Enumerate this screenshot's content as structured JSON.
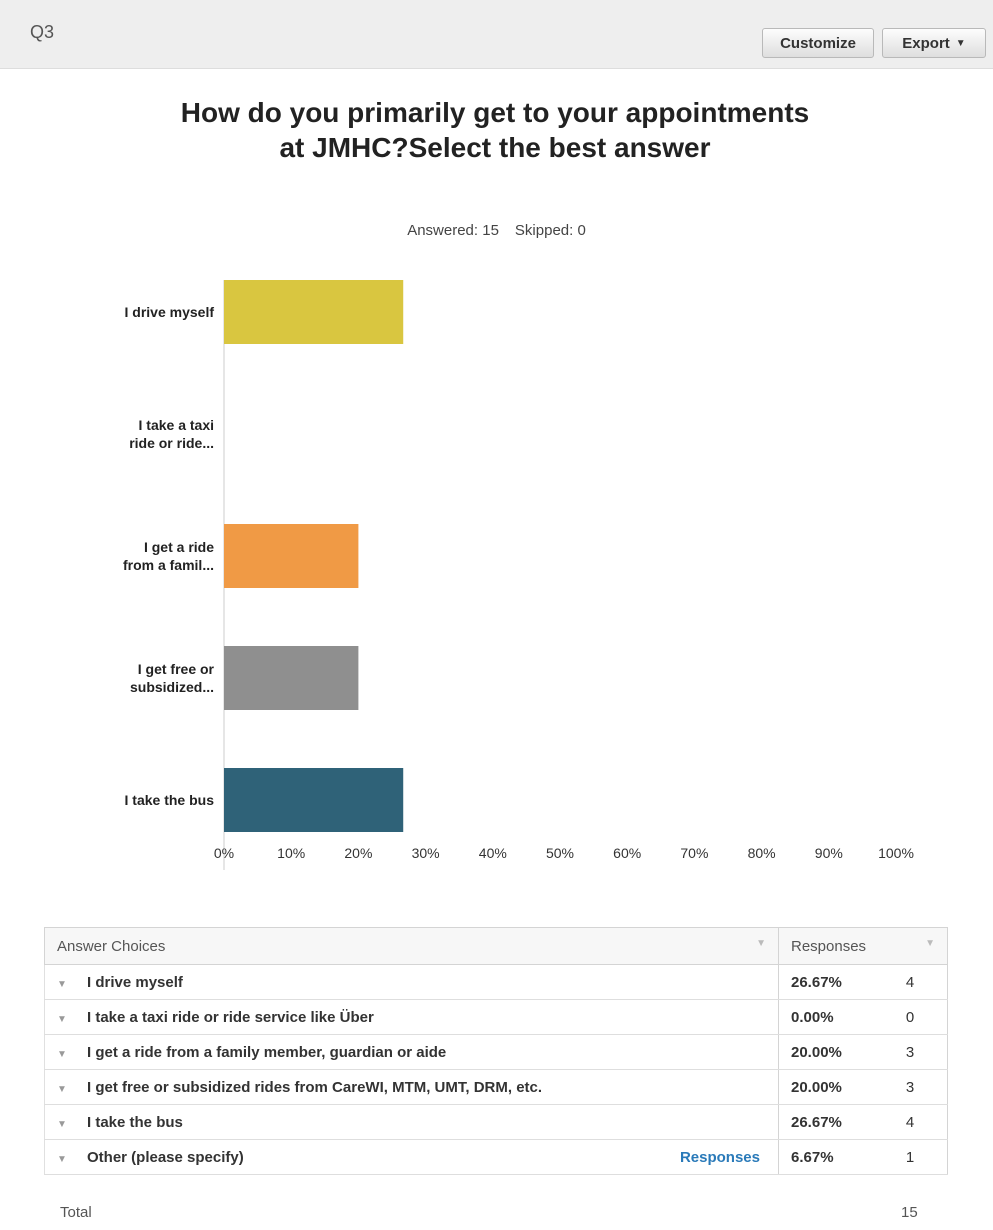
{
  "header": {
    "question_id": "Q3",
    "customize_label": "Customize",
    "export_label": "Export"
  },
  "title": "How do you primarily get to your appointments at JMHC?Select the best answer",
  "stats": {
    "answered": "Answered: 15",
    "skipped": "Skipped: 0"
  },
  "chart_data": {
    "type": "bar",
    "orientation": "horizontal",
    "categories": [
      "I drive myself",
      "I take a taxi ride or ride...",
      "I get a ride from a famil...",
      "I get free or subsidized...",
      "I take the bus",
      "Other (please specify)"
    ],
    "category_lines": [
      [
        "I drive myself"
      ],
      [
        "I take a taxi",
        "ride or ride..."
      ],
      [
        "I get a ride",
        "from a famil..."
      ],
      [
        "I get free or",
        "subsidized..."
      ],
      [
        "I take the bus"
      ],
      [
        "Other (please",
        "specify)"
      ]
    ],
    "values": [
      26.67,
      0,
      20,
      20,
      26.67,
      6.67
    ],
    "colors": [
      "#d9c640",
      "#c9c9c9",
      "#f09a45",
      "#8f8f8f",
      "#2f6278",
      "#c8c8c8"
    ],
    "xlim": [
      0,
      100
    ],
    "xticks": [
      "0%",
      "10%",
      "20%",
      "30%",
      "40%",
      "50%",
      "60%",
      "70%",
      "80%",
      "90%",
      "100%"
    ],
    "grid": false
  },
  "table": {
    "header_choices": "Answer Choices",
    "header_responses": "Responses",
    "rows": [
      {
        "choice": "I drive myself",
        "pct": "26.67%",
        "count": "4"
      },
      {
        "choice": "I take a taxi ride or ride service like Über",
        "pct": "0.00%",
        "count": "0"
      },
      {
        "choice": "I get a ride from a family member, guardian or aide",
        "pct": "20.00%",
        "count": "3"
      },
      {
        "choice": "I get free or subsidized rides from CareWI, MTM, UMT, DRM, etc.",
        "pct": "20.00%",
        "count": "3"
      },
      {
        "choice": "I take the bus",
        "pct": "26.67%",
        "count": "4"
      },
      {
        "choice": "Other (please specify)",
        "pct": "6.67%",
        "count": "1",
        "link": "Responses"
      }
    ],
    "total_label": "Total",
    "total_value": "15"
  }
}
